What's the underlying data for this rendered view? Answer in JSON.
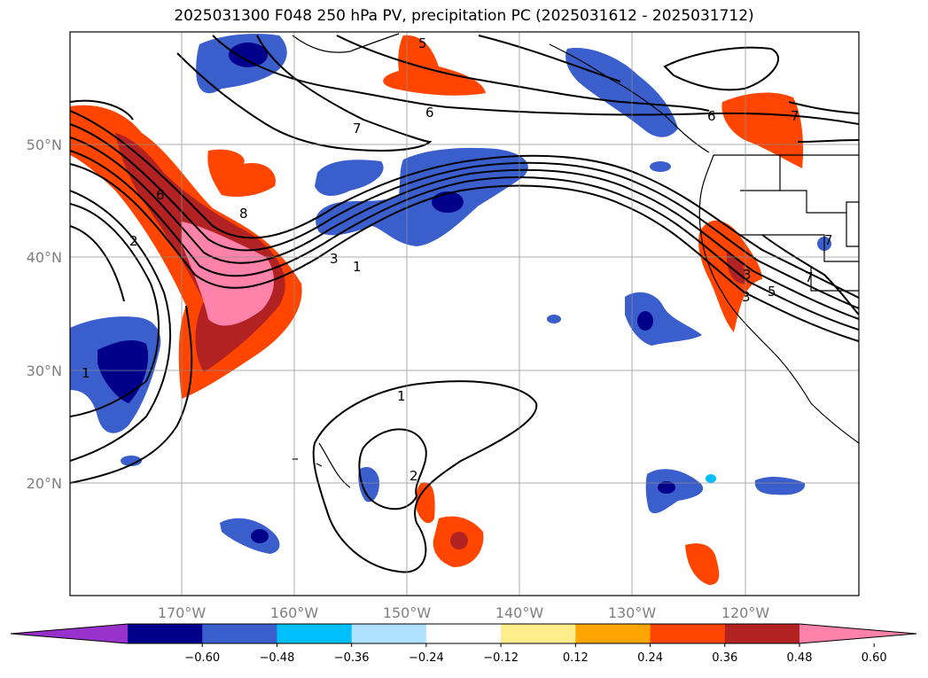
{
  "title": "2025031300 F048 250 hPa PV, precipitation PC (2025031612 - 2025031712)",
  "map": {
    "lat_labels": [
      "50°N",
      "40°N",
      "30°N",
      "20°N"
    ],
    "lon_labels": [
      "170°W",
      "160°W",
      "150°W",
      "140°W",
      "130°W",
      "120°W"
    ],
    "lat_range": [
      10,
      60
    ],
    "lon_range": [
      -180,
      -110
    ],
    "gridlines": true
  },
  "contour_labels": [
    "1",
    "2",
    "6",
    "8",
    "3",
    "1",
    "7",
    "6",
    "5",
    "6",
    "7",
    "1",
    "2",
    "3",
    "5",
    "7",
    "3",
    "7"
  ],
  "colorbar": {
    "ticks": [
      "−0.60",
      "−0.48",
      "−0.36",
      "−0.24",
      "−0.12",
      "0.12",
      "0.24",
      "0.36",
      "0.48",
      "0.60"
    ],
    "colors": [
      "#9932cc",
      "#00008b",
      "#3a5fcd",
      "#00bfff",
      "#b0e2ff",
      "#ffffff",
      "#ffec8b",
      "#ffa500",
      "#ff4500",
      "#b22222",
      "#ff82ab"
    ],
    "extend": "both"
  }
}
